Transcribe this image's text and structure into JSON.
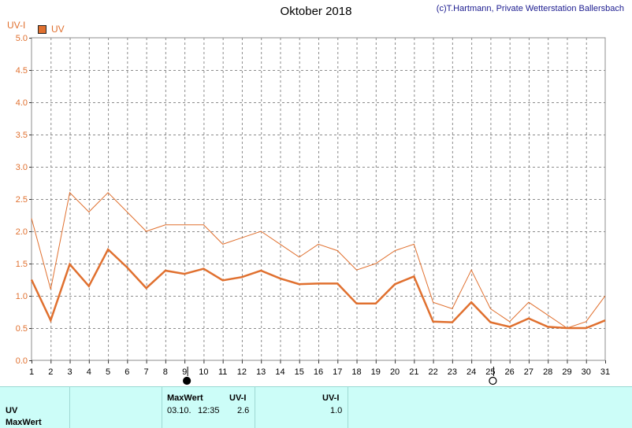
{
  "header": {
    "title": "Oktober 2018",
    "credit": "(c)T.Hartmann, Private Wetterstation Ballersbach",
    "unit": "UV-I",
    "legend": "UV"
  },
  "colors": {
    "series": "#e0702f",
    "grid": "#8c8c8c",
    "panel": "#ccfdf8"
  },
  "chart_data": {
    "type": "line",
    "x": [
      1,
      2,
      3,
      4,
      5,
      6,
      7,
      8,
      9,
      10,
      11,
      12,
      13,
      14,
      15,
      16,
      17,
      18,
      19,
      20,
      21,
      22,
      23,
      24,
      25,
      26,
      27,
      28,
      29,
      30,
      31
    ],
    "ylim": [
      0,
      5
    ],
    "yticks": [
      "0.0",
      "0.5",
      "1.0",
      "1.5",
      "2.0",
      "2.5",
      "3.0",
      "3.5",
      "4.0",
      "4.5",
      "5.0"
    ],
    "grid": true,
    "legend_position": "top-left",
    "series": [
      {
        "name": "UV",
        "style": "thick",
        "values": [
          1.25,
          0.62,
          1.49,
          1.15,
          1.72,
          1.44,
          1.12,
          1.39,
          1.34,
          1.42,
          1.24,
          1.29,
          1.39,
          1.27,
          1.18,
          1.19,
          1.19,
          0.88,
          0.88,
          1.18,
          1.3,
          0.6,
          0.59,
          0.9,
          0.59,
          0.52,
          0.65,
          0.52,
          0.5,
          0.5,
          0.62
        ]
      },
      {
        "style": "thin",
        "values": [
          2.2,
          1.1,
          2.6,
          2.3,
          2.6,
          2.3,
          2.0,
          2.1,
          2.1,
          2.1,
          1.8,
          1.9,
          2.0,
          1.8,
          1.6,
          1.8,
          1.7,
          1.4,
          1.5,
          1.7,
          1.8,
          0.9,
          0.8,
          1.4,
          0.8,
          0.6,
          0.9,
          0.7,
          0.5,
          0.6,
          1.0
        ]
      }
    ],
    "moon_markers": [
      {
        "day": 9,
        "phase": "new-moon"
      },
      {
        "day": 25,
        "phase": "full-moon"
      }
    ]
  },
  "panel": {
    "row_uv": "UV",
    "row_maxwert": "MaxWert",
    "max_header": "MaxWert",
    "max_date": "03.10.",
    "max_time": "12:35",
    "unit_header_1": "UV-I",
    "max_value": "2.6",
    "unit_header_2": "UV-I",
    "avg_value": "1.0"
  }
}
